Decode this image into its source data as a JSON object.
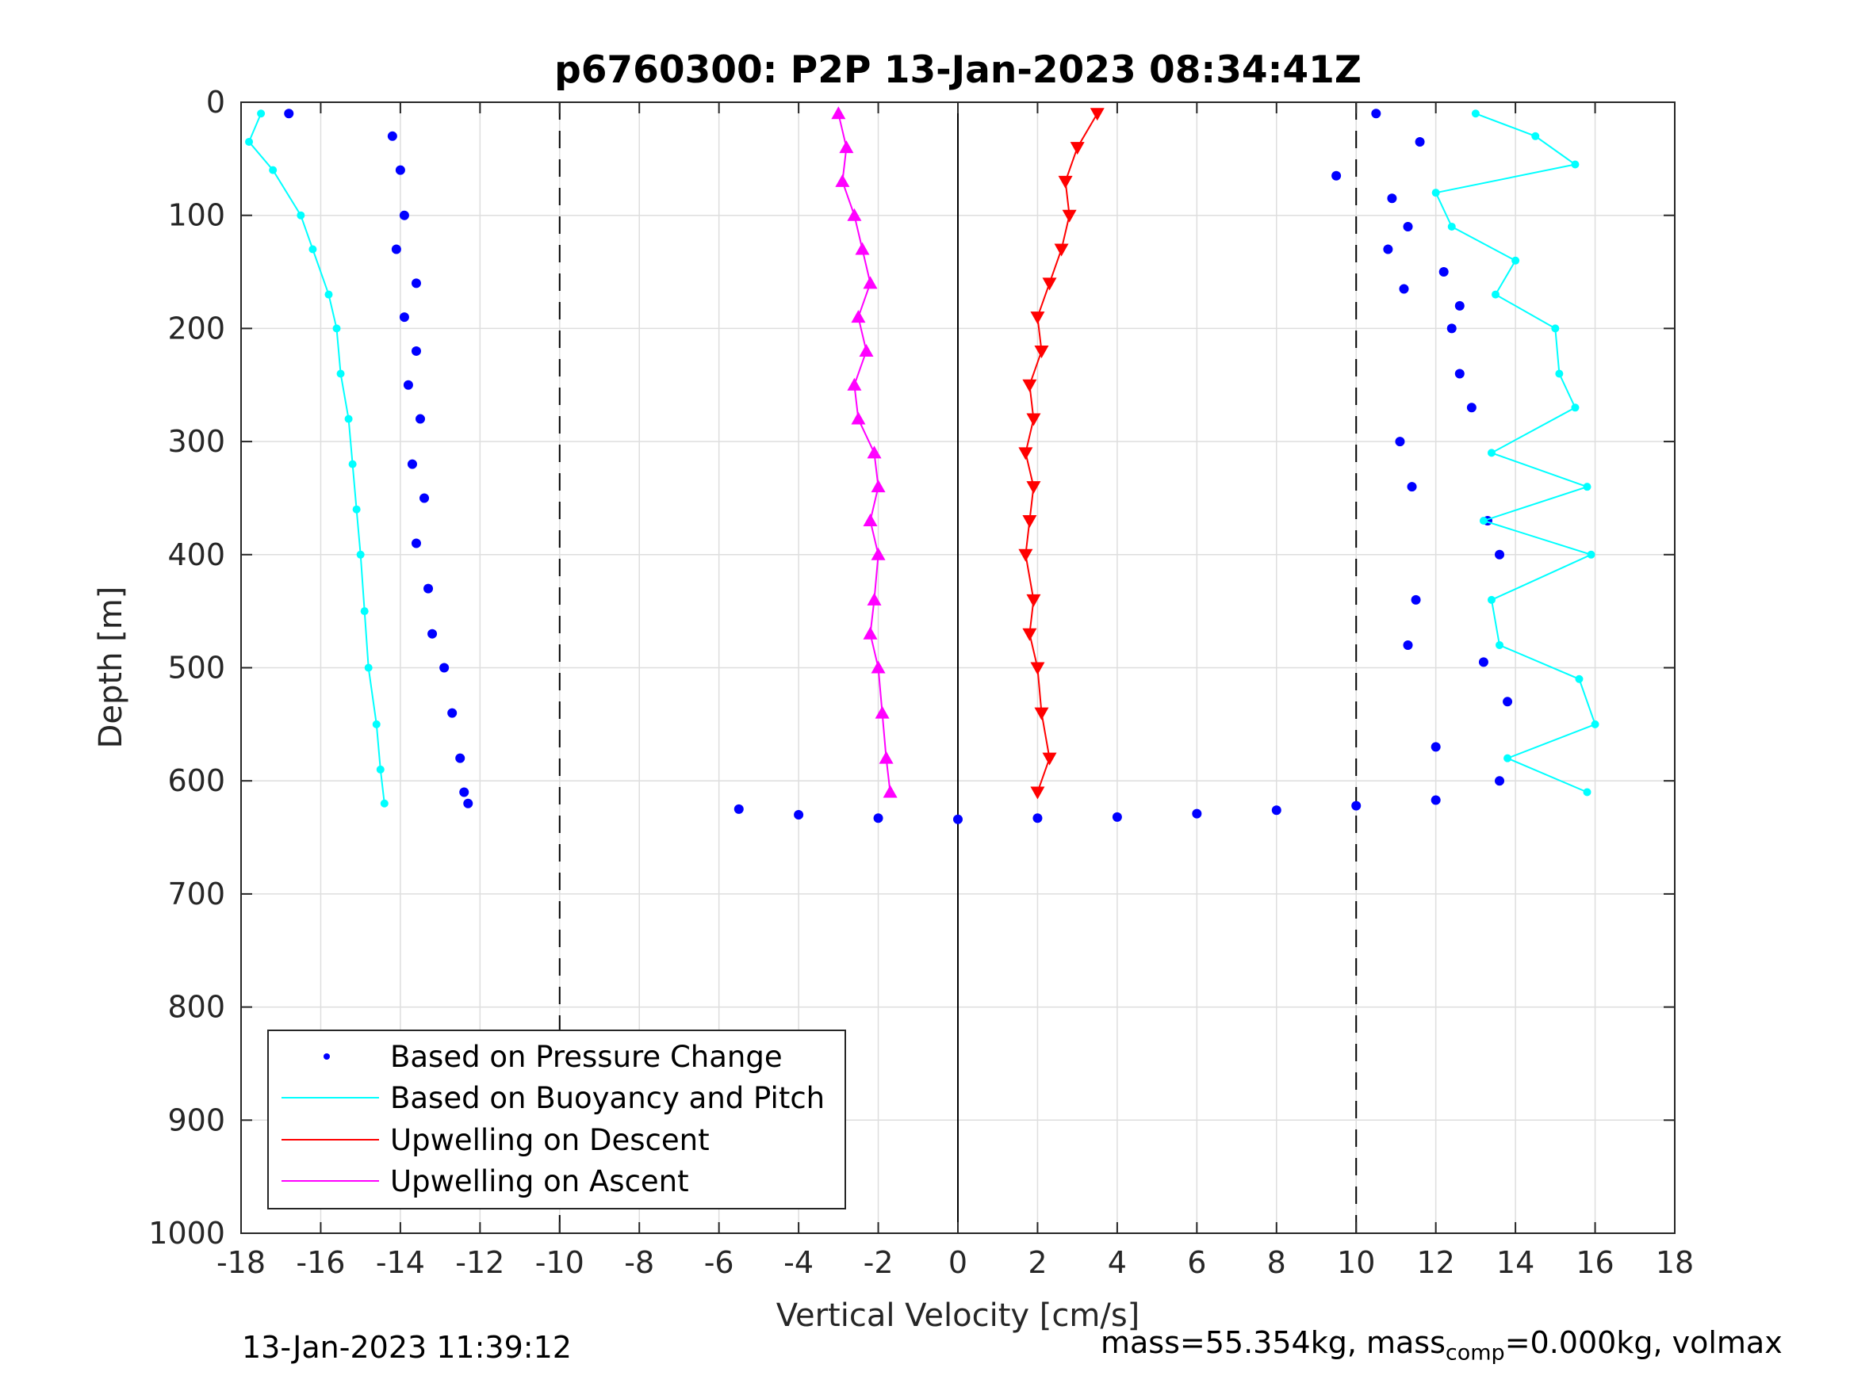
{
  "chart_data": {
    "type": "scatter",
    "title": "p6760300: P2P 13-Jan-2023 08:34:41Z",
    "xlabel": "Vertical Velocity [cm/s]",
    "ylabel": "Depth [m]",
    "xlim": [
      -18,
      18
    ],
    "ylim": [
      1000,
      0
    ],
    "y_reversed": true,
    "grid": true,
    "x_ticks": [
      -18,
      -16,
      -14,
      -12,
      -10,
      -8,
      -6,
      -4,
      -2,
      0,
      2,
      4,
      6,
      8,
      10,
      12,
      14,
      16,
      18
    ],
    "y_ticks": [
      0,
      100,
      200,
      300,
      400,
      500,
      600,
      700,
      800,
      900,
      1000
    ],
    "reference_lines": {
      "dashed_x": [
        -10,
        10
      ],
      "solid_x": [
        0
      ]
    },
    "legend_position": "bottom-left",
    "colors": {
      "pressure": "#0000ff",
      "buoyancy": "#00ffff",
      "upwell_descent": "#ff0000",
      "upwell_ascent": "#ff00ff"
    },
    "series": [
      {
        "name": "Based on Pressure Change",
        "style": "dots",
        "color": "#0000ff",
        "profiles": [
          {
            "part": "dive",
            "points": [
              [
                -16.8,
                10
              ],
              [
                -14.2,
                30
              ],
              [
                -14.0,
                60
              ],
              [
                -13.9,
                100
              ],
              [
                -14.1,
                130
              ],
              [
                -13.6,
                160
              ],
              [
                -13.9,
                190
              ],
              [
                -13.6,
                220
              ],
              [
                -13.8,
                250
              ],
              [
                -13.5,
                280
              ],
              [
                -13.7,
                320
              ],
              [
                -13.4,
                350
              ],
              [
                -13.6,
                390
              ],
              [
                -13.3,
                430
              ],
              [
                -13.2,
                470
              ],
              [
                -12.9,
                500
              ],
              [
                -12.7,
                540
              ],
              [
                -12.5,
                580
              ],
              [
                -12.4,
                610
              ],
              [
                -12.3,
                620
              ]
            ]
          },
          {
            "part": "climb",
            "points": [
              [
                10.5,
                10
              ],
              [
                11.6,
                35
              ],
              [
                9.5,
                65
              ],
              [
                10.9,
                85
              ],
              [
                11.3,
                110
              ],
              [
                10.8,
                130
              ],
              [
                11.2,
                165
              ],
              [
                12.2,
                150
              ],
              [
                12.6,
                180
              ],
              [
                12.4,
                200
              ],
              [
                12.6,
                240
              ],
              [
                12.9,
                270
              ],
              [
                11.1,
                300
              ],
              [
                11.4,
                340
              ],
              [
                13.3,
                370
              ],
              [
                13.6,
                400
              ],
              [
                11.5,
                440
              ],
              [
                11.3,
                480
              ],
              [
                13.2,
                495
              ],
              [
                13.8,
                530
              ],
              [
                12.0,
                570
              ],
              [
                13.6,
                600
              ]
            ]
          },
          {
            "part": "apogee",
            "points": [
              [
                -5.5,
                625
              ],
              [
                -4,
                630
              ],
              [
                -2,
                633
              ],
              [
                0,
                634
              ],
              [
                2,
                633
              ],
              [
                4,
                632
              ],
              [
                6,
                629
              ],
              [
                8,
                626
              ],
              [
                10,
                622
              ],
              [
                12,
                617
              ]
            ]
          }
        ]
      },
      {
        "name": "Based on Buoyancy and Pitch",
        "style": "line+dots",
        "color": "#00ffff",
        "profiles": [
          {
            "part": "dive",
            "points": [
              [
                -17.5,
                10
              ],
              [
                -17.8,
                35
              ],
              [
                -17.2,
                60
              ],
              [
                -16.5,
                100
              ],
              [
                -16.2,
                130
              ],
              [
                -15.8,
                170
              ],
              [
                -15.6,
                200
              ],
              [
                -15.5,
                240
              ],
              [
                -15.3,
                280
              ],
              [
                -15.2,
                320
              ],
              [
                -15.1,
                360
              ],
              [
                -15.0,
                400
              ],
              [
                -14.9,
                450
              ],
              [
                -14.8,
                500
              ],
              [
                -14.6,
                550
              ],
              [
                -14.5,
                590
              ],
              [
                -14.4,
                620
              ]
            ]
          },
          {
            "part": "climb",
            "points": [
              [
                13.0,
                10
              ],
              [
                14.5,
                30
              ],
              [
                15.5,
                55
              ],
              [
                12.0,
                80
              ],
              [
                12.4,
                110
              ],
              [
                14.0,
                140
              ],
              [
                13.5,
                170
              ],
              [
                15.0,
                200
              ],
              [
                15.1,
                240
              ],
              [
                15.5,
                270
              ],
              [
                13.4,
                310
              ],
              [
                15.8,
                340
              ],
              [
                13.2,
                370
              ],
              [
                15.9,
                400
              ],
              [
                13.4,
                440
              ],
              [
                13.6,
                480
              ],
              [
                15.6,
                510
              ],
              [
                16.0,
                550
              ],
              [
                13.8,
                580
              ],
              [
                15.8,
                610
              ]
            ]
          }
        ]
      },
      {
        "name": "Upwelling on Descent",
        "style": "triangle-down",
        "color": "#ff0000",
        "points": [
          [
            3.5,
            10
          ],
          [
            3.0,
            40
          ],
          [
            2.7,
            70
          ],
          [
            2.8,
            100
          ],
          [
            2.6,
            130
          ],
          [
            2.3,
            160
          ],
          [
            2.0,
            190
          ],
          [
            2.1,
            220
          ],
          [
            1.8,
            250
          ],
          [
            1.9,
            280
          ],
          [
            1.7,
            310
          ],
          [
            1.9,
            340
          ],
          [
            1.8,
            370
          ],
          [
            1.7,
            400
          ],
          [
            1.9,
            440
          ],
          [
            1.8,
            470
          ],
          [
            2.0,
            500
          ],
          [
            2.1,
            540
          ],
          [
            2.3,
            580
          ],
          [
            2.0,
            610
          ]
        ]
      },
      {
        "name": "Upwelling on Ascent",
        "style": "triangle-up",
        "color": "#ff00ff",
        "points": [
          [
            -3.0,
            10
          ],
          [
            -2.8,
            40
          ],
          [
            -2.9,
            70
          ],
          [
            -2.6,
            100
          ],
          [
            -2.4,
            130
          ],
          [
            -2.2,
            160
          ],
          [
            -2.5,
            190
          ],
          [
            -2.3,
            220
          ],
          [
            -2.6,
            250
          ],
          [
            -2.5,
            280
          ],
          [
            -2.1,
            310
          ],
          [
            -2.0,
            340
          ],
          [
            -2.2,
            370
          ],
          [
            -2.0,
            400
          ],
          [
            -2.1,
            440
          ],
          [
            -2.2,
            470
          ],
          [
            -2.0,
            500
          ],
          [
            -1.9,
            540
          ],
          [
            -1.8,
            580
          ],
          [
            -1.7,
            610
          ]
        ]
      }
    ],
    "legend": [
      "Based on Pressure Change",
      "Based on Buoyancy and Pitch",
      "Upwelling on Descent",
      "Upwelling on Ascent"
    ]
  },
  "footer": {
    "timestamp": "13-Jan-2023 11:39:12",
    "mass_prefix": "mass=55.354kg, mass",
    "mass_sub": "comp",
    "mass_suffix": "=0.000kg, volmax"
  }
}
